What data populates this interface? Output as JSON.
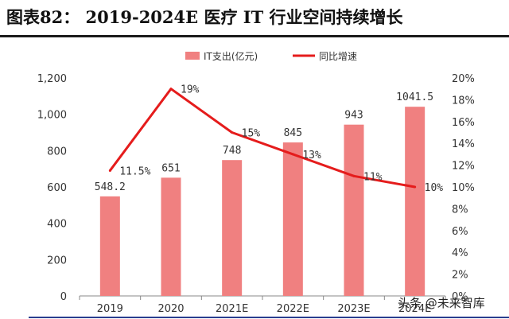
{
  "figure_title": "图表82：  2019-2024E 医疗 IT 行业空间持续增长",
  "watermark": "头条 @未来智库",
  "colors": {
    "bar": "#f08080",
    "line": "#e51c1c",
    "axis": "#888888",
    "text": "#333333"
  },
  "chart_data": {
    "type": "bar",
    "title": "",
    "categories": [
      "2019",
      "2020",
      "2021E",
      "2022E",
      "2023E",
      "2024E"
    ],
    "series": [
      {
        "name": "IT支出(亿元)",
        "type": "bar",
        "axis": "left",
        "values": [
          548.2,
          651,
          748,
          845,
          943,
          1041.5
        ],
        "labels": [
          "548.2",
          "651",
          "748",
          "845",
          "943",
          "1041.5"
        ]
      },
      {
        "name": "同比增速",
        "type": "line",
        "axis": "right",
        "values": [
          11.5,
          19,
          15,
          13,
          11,
          10
        ],
        "labels": [
          "11.5%",
          "19%",
          "15%",
          "13%",
          "11%",
          "10%"
        ]
      }
    ],
    "y_left": {
      "min": 0,
      "max": 1200,
      "ticks": [
        "0",
        "200",
        "400",
        "600",
        "800",
        "1,000",
        "1,200"
      ],
      "tick_values": [
        0,
        200,
        400,
        600,
        800,
        1000,
        1200
      ]
    },
    "y_right": {
      "min": 0,
      "max": 20,
      "ticks": [
        "0%",
        "2%",
        "4%",
        "6%",
        "8%",
        "10%",
        "12%",
        "14%",
        "16%",
        "18%",
        "20%"
      ],
      "tick_values": [
        0,
        2,
        4,
        6,
        8,
        10,
        12,
        14,
        16,
        18,
        20
      ]
    },
    "legend_position": "top",
    "grid": false
  }
}
